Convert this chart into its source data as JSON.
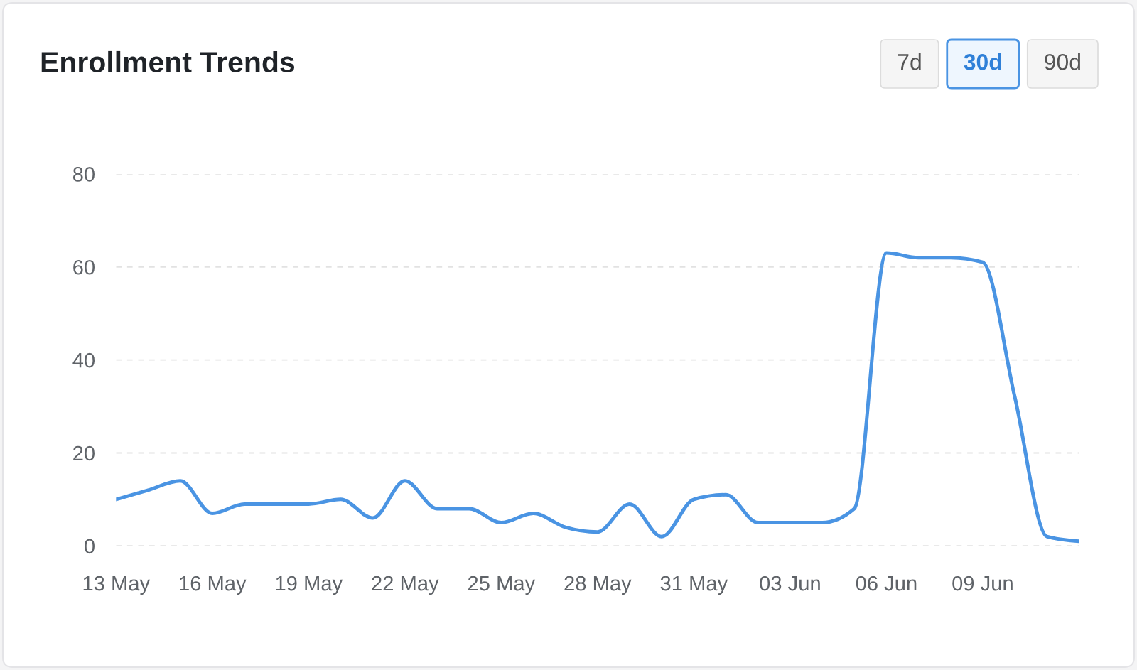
{
  "chart_data": {
    "type": "line",
    "title": "Enrollment Trends",
    "categories": [
      "13 May",
      null,
      null,
      "16 May",
      null,
      null,
      "19 May",
      null,
      null,
      "22 May",
      null,
      null,
      "25 May",
      null,
      null,
      "28 May",
      null,
      null,
      "31 May",
      null,
      null,
      "03 Jun",
      null,
      null,
      "06 Jun",
      null,
      null,
      "09 Jun",
      null,
      null,
      null
    ],
    "series": [
      {
        "color": "#4a94e3",
        "values": [
          10,
          12,
          14,
          7,
          9,
          9,
          9,
          10,
          6,
          14,
          8,
          8,
          5,
          7,
          4,
          3,
          9,
          2,
          10,
          11,
          5,
          5,
          5,
          8,
          63,
          62,
          62,
          61,
          32,
          2,
          1
        ]
      }
    ],
    "ylim": [
      0,
      80
    ],
    "yticks": [
      0,
      20,
      40,
      60,
      80
    ],
    "grid": "y",
    "marker": "none",
    "line_style": "solid",
    "annotations": [
      "7d",
      "30d",
      "90d"
    ]
  }
}
